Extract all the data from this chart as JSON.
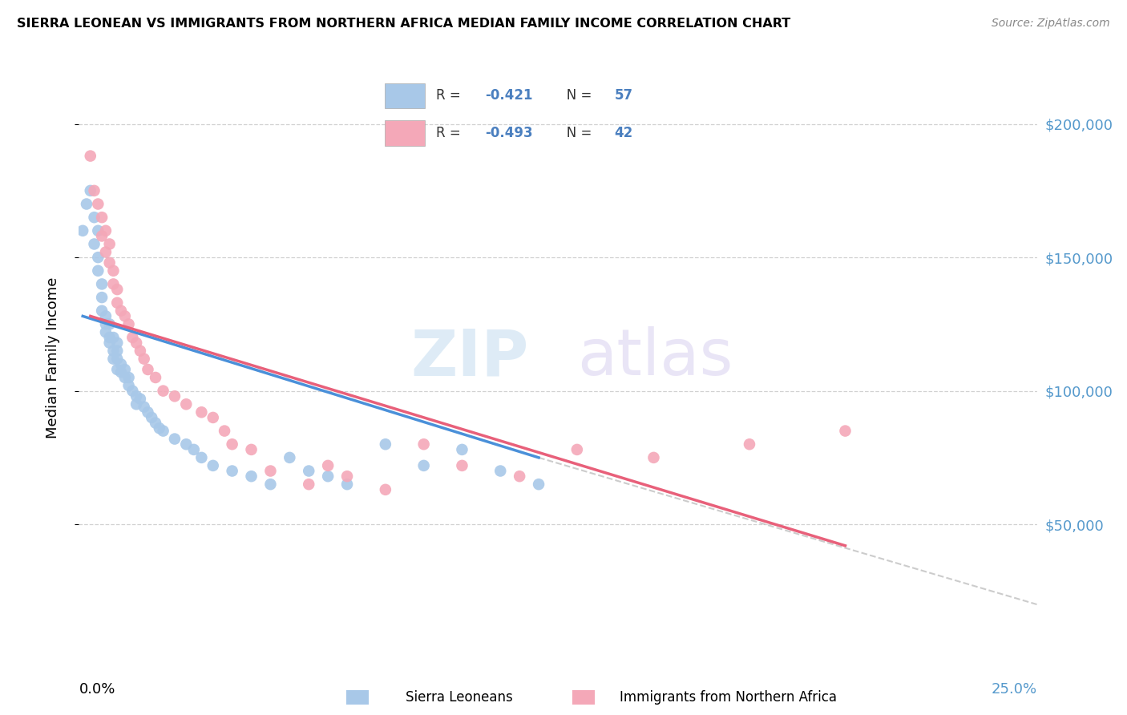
{
  "title": "SIERRA LEONEAN VS IMMIGRANTS FROM NORTHERN AFRICA MEDIAN FAMILY INCOME CORRELATION CHART",
  "source": "Source: ZipAtlas.com",
  "ylabel": "Median Family Income",
  "xmin": 0.0,
  "xmax": 0.25,
  "ymin": 0,
  "ymax": 225000,
  "color_blue": "#a8c8e8",
  "color_pink": "#f4a8b8",
  "color_blue_line": "#4a90d9",
  "color_pink_line": "#e8607a",
  "color_dashed": "#c0c0c0",
  "sierra_x": [
    0.001,
    0.002,
    0.003,
    0.004,
    0.004,
    0.005,
    0.005,
    0.005,
    0.006,
    0.006,
    0.006,
    0.007,
    0.007,
    0.007,
    0.008,
    0.008,
    0.008,
    0.009,
    0.009,
    0.009,
    0.01,
    0.01,
    0.01,
    0.01,
    0.011,
    0.011,
    0.012,
    0.012,
    0.013,
    0.013,
    0.014,
    0.015,
    0.015,
    0.016,
    0.017,
    0.018,
    0.019,
    0.02,
    0.021,
    0.022,
    0.025,
    0.028,
    0.03,
    0.032,
    0.035,
    0.04,
    0.045,
    0.05,
    0.055,
    0.06,
    0.065,
    0.07,
    0.08,
    0.09,
    0.1,
    0.11,
    0.12
  ],
  "sierra_y": [
    160000,
    170000,
    175000,
    165000,
    155000,
    160000,
    150000,
    145000,
    140000,
    135000,
    130000,
    128000,
    125000,
    122000,
    125000,
    120000,
    118000,
    120000,
    115000,
    112000,
    118000,
    115000,
    112000,
    108000,
    110000,
    107000,
    108000,
    105000,
    105000,
    102000,
    100000,
    98000,
    95000,
    97000,
    94000,
    92000,
    90000,
    88000,
    86000,
    85000,
    82000,
    80000,
    78000,
    75000,
    72000,
    70000,
    68000,
    65000,
    75000,
    70000,
    68000,
    65000,
    80000,
    72000,
    78000,
    70000,
    65000
  ],
  "nafr_x": [
    0.003,
    0.004,
    0.005,
    0.006,
    0.006,
    0.007,
    0.007,
    0.008,
    0.008,
    0.009,
    0.009,
    0.01,
    0.01,
    0.011,
    0.012,
    0.013,
    0.014,
    0.015,
    0.016,
    0.017,
    0.018,
    0.02,
    0.022,
    0.025,
    0.028,
    0.032,
    0.035,
    0.038,
    0.04,
    0.045,
    0.05,
    0.06,
    0.065,
    0.07,
    0.08,
    0.09,
    0.1,
    0.115,
    0.13,
    0.15,
    0.175,
    0.2
  ],
  "nafr_y": [
    188000,
    175000,
    170000,
    165000,
    158000,
    160000,
    152000,
    155000,
    148000,
    145000,
    140000,
    138000,
    133000,
    130000,
    128000,
    125000,
    120000,
    118000,
    115000,
    112000,
    108000,
    105000,
    100000,
    98000,
    95000,
    92000,
    90000,
    85000,
    80000,
    78000,
    70000,
    65000,
    72000,
    68000,
    63000,
    80000,
    72000,
    68000,
    78000,
    75000,
    80000,
    85000
  ],
  "blue_line_x": [
    0.001,
    0.12
  ],
  "blue_line_y": [
    128000,
    75000
  ],
  "pink_line_x": [
    0.003,
    0.2
  ],
  "pink_line_y": [
    128000,
    42000
  ],
  "dashed_line_x": [
    0.12,
    0.25
  ],
  "dashed_line_y": [
    75000,
    20000
  ],
  "ytick_vals": [
    50000,
    100000,
    150000,
    200000
  ],
  "ytick_labels": [
    "$50,000",
    "$100,000",
    "$150,000",
    "$200,000"
  ]
}
